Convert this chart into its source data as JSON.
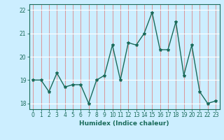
{
  "x": [
    0,
    1,
    2,
    3,
    4,
    5,
    6,
    7,
    8,
    9,
    10,
    11,
    12,
    13,
    14,
    15,
    16,
    17,
    18,
    19,
    20,
    21,
    22,
    23
  ],
  "y": [
    19.0,
    19.0,
    18.5,
    19.3,
    18.7,
    18.8,
    18.8,
    18.0,
    19.0,
    19.2,
    20.5,
    19.0,
    20.6,
    20.5,
    21.0,
    21.9,
    20.3,
    20.3,
    21.5,
    19.2,
    20.5,
    18.5,
    18.0,
    18.1
  ],
  "line_color": "#1a6b5a",
  "marker": "*",
  "marker_size": 3,
  "bg_color": "#cceeff",
  "grid_color_h": "#ffffff",
  "grid_color_v": "#dd8888",
  "xlabel": "Humidex (Indice chaleur)",
  "ylim": [
    17.75,
    22.25
  ],
  "xlim": [
    -0.5,
    23.5
  ],
  "yticks": [
    18,
    19,
    20,
    21,
    22
  ],
  "xticks": [
    0,
    1,
    2,
    3,
    4,
    5,
    6,
    7,
    8,
    9,
    10,
    11,
    12,
    13,
    14,
    15,
    16,
    17,
    18,
    19,
    20,
    21,
    22,
    23
  ],
  "tick_color": "#1a6b5a",
  "label_fontsize": 6.5,
  "tick_fontsize": 5.5,
  "linewidth": 1.0
}
